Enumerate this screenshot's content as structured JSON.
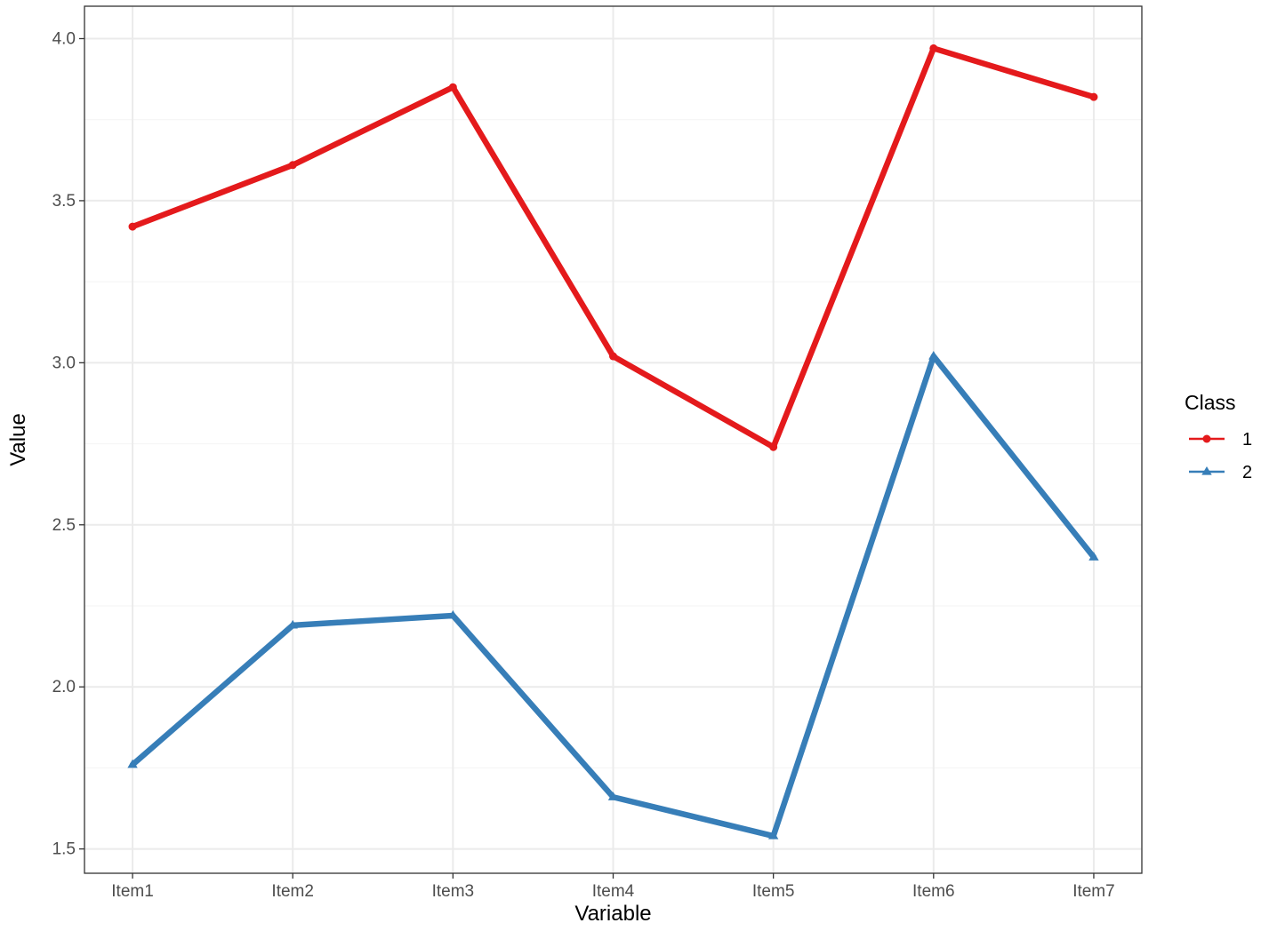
{
  "chart_data": {
    "type": "line",
    "categories": [
      "Item1",
      "Item2",
      "Item3",
      "Item4",
      "Item5",
      "Item6",
      "Item7"
    ],
    "series": [
      {
        "name": "1",
        "marker": "circle",
        "color": "#E41A1C",
        "values": [
          3.42,
          3.61,
          3.85,
          3.02,
          2.74,
          3.97,
          3.82
        ]
      },
      {
        "name": "2",
        "marker": "triangle",
        "color": "#377EB8",
        "values": [
          1.76,
          2.19,
          2.22,
          1.66,
          1.54,
          3.02,
          2.4
        ]
      }
    ],
    "title": "",
    "xlabel": "Variable",
    "ylabel": "Value",
    "ylim": [
      1.425,
      4.1
    ],
    "yticks": [
      1.5,
      2.0,
      2.5,
      3.0,
      3.5,
      4.0
    ],
    "ytick_labels": [
      "1.5",
      "2.0",
      "2.5",
      "3.0",
      "3.5",
      "4.0"
    ],
    "grid": true,
    "legend": {
      "title": "Class",
      "position": "right"
    },
    "colors": {
      "panel_border": "#333333",
      "grid_major": "#EBEBEB",
      "grid_minor": "#F5F5F5"
    }
  }
}
